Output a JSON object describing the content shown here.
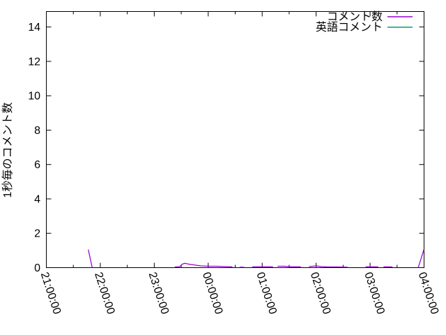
{
  "window": {
    "background": "#ffffff",
    "axis_color": "#000000",
    "text_color": "#000000"
  },
  "chart_data": {
    "type": "line",
    "title": "",
    "xlabel": "",
    "ylabel": "1秒毎のコメント数",
    "x_tick_labels": [
      "21:00:00",
      "22:00:00",
      "23:00:00",
      "00:00:00",
      "01:00:00",
      "02:00:00",
      "03:00:00",
      "04:00:00"
    ],
    "x_start": "21:00:00",
    "x_end": "04:00:00",
    "x_span_hours": 7,
    "x_minor_tick_interval_hours": 0.5,
    "y_tick_values": [
      0,
      2,
      4,
      6,
      8,
      10,
      12,
      14
    ],
    "ylim": [
      0,
      14.9
    ],
    "grid": false,
    "legend_position": "top-right-inside",
    "legend": [
      {
        "label": "コメント数",
        "color": "#9400d3"
      },
      {
        "label": "英語コメント",
        "color": "#009e73"
      }
    ],
    "series": [
      {
        "name": "コメント数",
        "color": "#9400d3",
        "segments": [
          [
            [
              "21:46:40",
              1.05
            ],
            [
              "21:51:00",
              0.0
            ]
          ],
          [
            [
              "23:23:00",
              0.04
            ],
            [
              "23:28:00",
              0.05
            ],
            [
              "23:31:00",
              0.2
            ],
            [
              "23:34:00",
              0.25
            ],
            [
              "23:39:00",
              0.2
            ],
            [
              "23:45:00",
              0.15
            ],
            [
              "23:52:00",
              0.1
            ],
            [
              "00:01:00",
              0.08
            ],
            [
              "00:10:00",
              0.08
            ],
            [
              "00:19:00",
              0.06
            ],
            [
              "00:27:00",
              0.05
            ]
          ],
          [
            [
              "00:35:00",
              0.03
            ],
            [
              "00:40:00",
              0.03
            ]
          ],
          [
            [
              "00:49:00",
              0.05
            ],
            [
              "01:12:00",
              0.05
            ]
          ],
          [
            [
              "01:17:00",
              0.08
            ],
            [
              "01:25:00",
              0.08
            ],
            [
              "01:32:00",
              0.05
            ],
            [
              "01:43:00",
              0.05
            ]
          ],
          [
            [
              "01:52:00",
              0.06
            ],
            [
              "02:00:00",
              0.1
            ],
            [
              "02:06:00",
              0.06
            ],
            [
              "02:13:00",
              0.04
            ],
            [
              "02:24:00",
              0.04
            ],
            [
              "02:35:00",
              0.03
            ]
          ],
          [
            [
              "02:55:00",
              0.05
            ],
            [
              "03:09:00",
              0.05
            ]
          ],
          [
            [
              "03:15:00",
              0.05
            ],
            [
              "03:25:00",
              0.04
            ]
          ],
          [
            [
              "03:53:30",
              0.0
            ],
            [
              "03:59:50",
              1.05
            ]
          ]
        ]
      },
      {
        "name": "英語コメント",
        "color": "#009e73",
        "segments": []
      }
    ]
  }
}
